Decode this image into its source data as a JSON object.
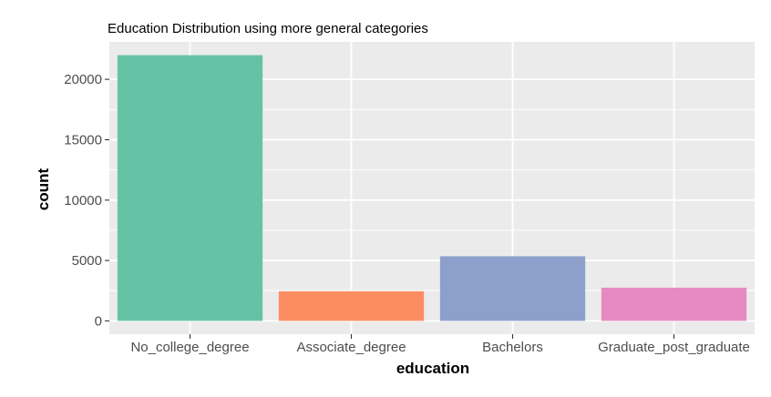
{
  "chart_data": {
    "type": "bar",
    "title": "Education Distribution using more general categories",
    "xlabel": "education",
    "ylabel": "count",
    "categories": [
      "No_college_degree",
      "Associate_degree",
      "Bachelors",
      "Graduate_post_graduate"
    ],
    "values": [
      22000,
      2450,
      5350,
      2750
    ],
    "ylim": [
      -1100,
      23100
    ],
    "yticks": [
      0,
      5000,
      10000,
      15000,
      20000
    ],
    "grid": true,
    "legend": "none",
    "colors": [
      "#66c2a5",
      "#fc8d62",
      "#8da0cb",
      "#e78ac3"
    ],
    "panel_background": "#ebebeb",
    "grid_color": "#ffffff"
  }
}
